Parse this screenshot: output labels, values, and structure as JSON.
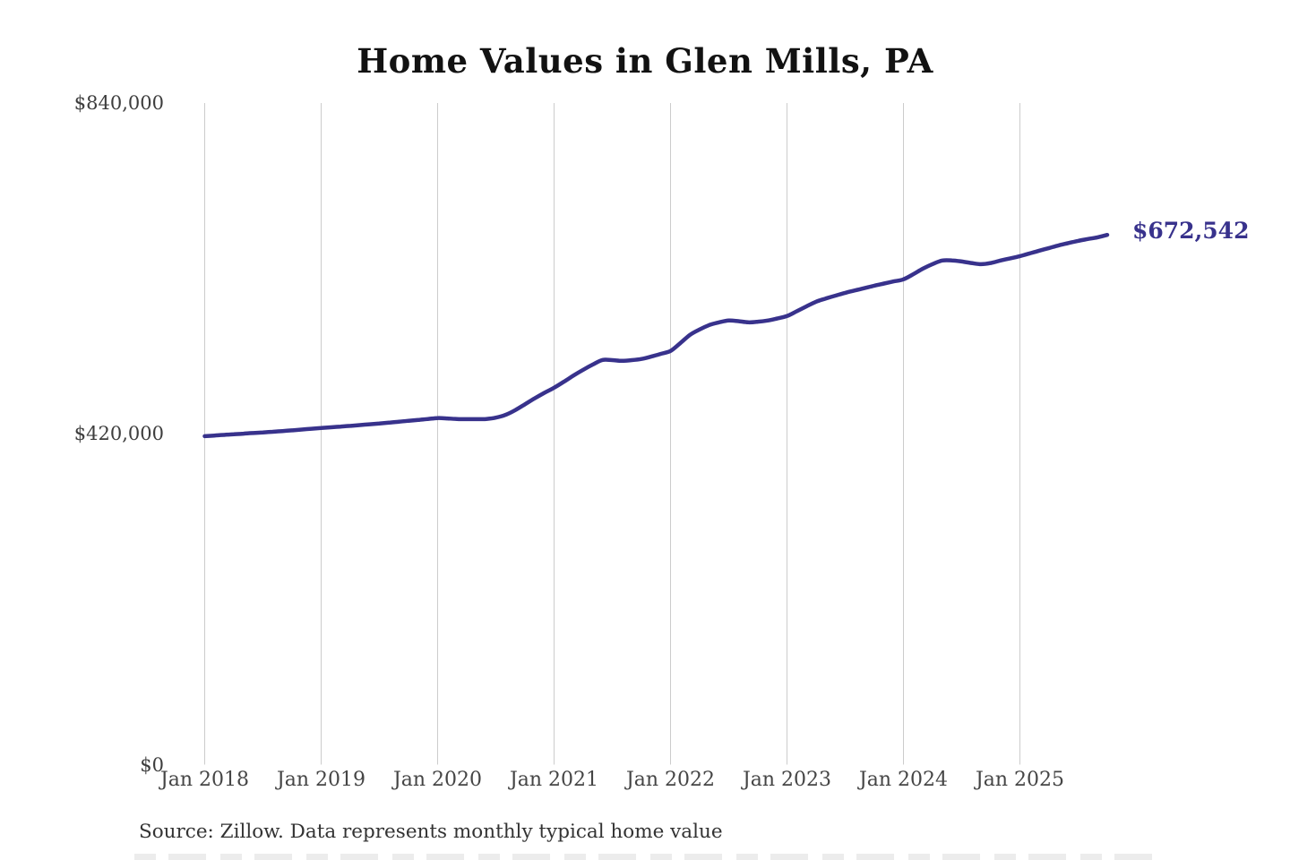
{
  "title": "Home Values in Glen Mills, PA",
  "source_note": "Source: Zillow. Data represents monthly typical home value",
  "colors": {
    "line": "#38328c",
    "grid": "#cccccc",
    "title_text": "#121212",
    "axis_text": "#454545",
    "value_label": "#38328c"
  },
  "chart_data": {
    "type": "line",
    "title": "Home Values in Glen Mills, PA",
    "series_name": "Typical home value",
    "frequency": "monthly",
    "start_month": "2018-01",
    "end_month": "2025-10",
    "values": [
      417000,
      417800,
      418600,
      419400,
      420200,
      421000,
      421700,
      422600,
      423500,
      424400,
      425400,
      426400,
      427400,
      428300,
      429200,
      430100,
      431100,
      432100,
      433100,
      434200,
      435300,
      436500,
      437600,
      438800,
      440000,
      439500,
      438800,
      438600,
      438600,
      438800,
      440500,
      444000,
      450100,
      457500,
      465000,
      472000,
      478500,
      486000,
      494000,
      501300,
      508000,
      513800,
      513500,
      512600,
      513500,
      515000,
      518000,
      521500,
      525200,
      535000,
      545600,
      552500,
      558100,
      561500,
      563800,
      563000,
      561500,
      562300,
      563800,
      566500,
      569500,
      575500,
      581800,
      587700,
      591800,
      595500,
      599000,
      602000,
      605000,
      608100,
      610800,
      613500,
      616100,
      622500,
      629700,
      635500,
      640000,
      640200,
      638800,
      636800,
      635400,
      636800,
      640000,
      642800,
      645600,
      649000,
      652500,
      655900,
      659300,
      662200,
      665000,
      667300,
      669500,
      672542
    ],
    "final_value": 672542,
    "final_value_label": "$672,542",
    "ylim": [
      0,
      840000
    ],
    "y_ticks": [
      {
        "label": "$840,000",
        "value": 840000
      },
      {
        "label": "$420,000",
        "value": 420000
      },
      {
        "label": "$0",
        "value": 0
      }
    ],
    "x_ticks": [
      {
        "label": "Jan 2018",
        "month_index": 0
      },
      {
        "label": "Jan 2019",
        "month_index": 12
      },
      {
        "label": "Jan 2020",
        "month_index": 24
      },
      {
        "label": "Jan 2021",
        "month_index": 36
      },
      {
        "label": "Jan 2022",
        "month_index": 48
      },
      {
        "label": "Jan 2023",
        "month_index": 60
      },
      {
        "label": "Jan 2024",
        "month_index": 72
      },
      {
        "label": "Jan 2025",
        "month_index": 84
      }
    ],
    "grid": "vertical-only",
    "legend": "none"
  }
}
